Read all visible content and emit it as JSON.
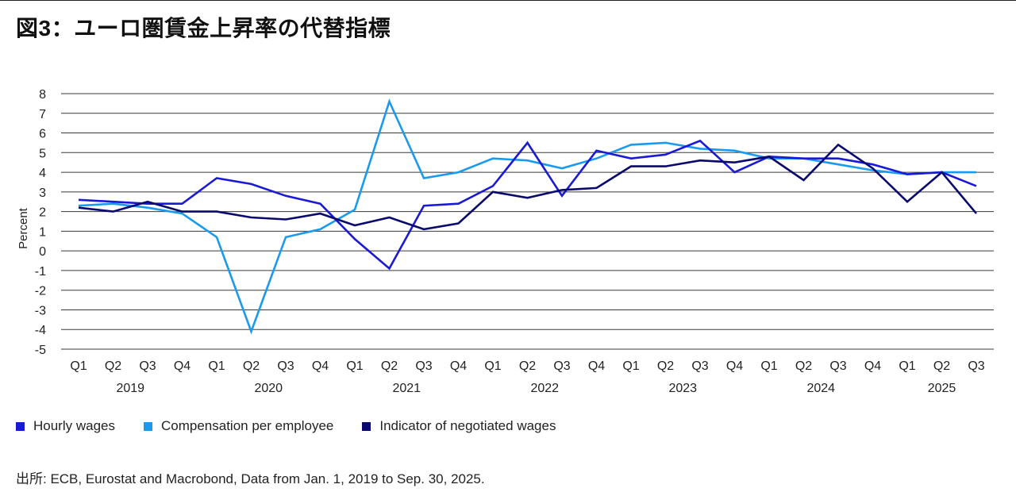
{
  "title": "図3：ユーロ圏賃金上昇率の代替指標",
  "source": "出所: ECB, Eurostat and Macrobond, Data from Jan. 1, 2019 to Sep. 30, 2025.",
  "chart_data": {
    "type": "line",
    "title": "図3：ユーロ圏賃金上昇率の代替指標",
    "ylabel": "Percent",
    "xlabel": "",
    "ylim": [
      -5,
      8
    ],
    "yticks": [
      "8",
      "7",
      "6",
      "5",
      "4",
      "3",
      "2",
      "1",
      "0",
      "-1",
      "-2",
      "-3",
      "-4",
      "-5"
    ],
    "categories": [
      "Q1",
      "Q2",
      "Q3",
      "Q4",
      "Q1",
      "Q2",
      "Q3",
      "Q4",
      "Q1",
      "Q2",
      "Q3",
      "Q4",
      "Q1",
      "Q2",
      "Q3",
      "Q4",
      "Q1",
      "Q2",
      "Q3",
      "Q4",
      "Q1",
      "Q2",
      "Q3",
      "Q4",
      "Q1",
      "Q2",
      "Q3"
    ],
    "years": [
      {
        "label": "2019",
        "start": 0,
        "end": 3
      },
      {
        "label": "2020",
        "start": 4,
        "end": 7
      },
      {
        "label": "2021",
        "start": 8,
        "end": 11
      },
      {
        "label": "2022",
        "start": 12,
        "end": 15
      },
      {
        "label": "2023",
        "start": 16,
        "end": 19
      },
      {
        "label": "2024",
        "start": 20,
        "end": 23
      },
      {
        "label": "2025",
        "start": 24,
        "end": 26
      }
    ],
    "series": [
      {
        "name": "Hourly wages",
        "color": "#1a1ad6",
        "values": [
          2.6,
          2.5,
          2.4,
          2.4,
          3.7,
          3.4,
          2.8,
          2.4,
          0.6,
          -0.9,
          2.3,
          2.4,
          3.3,
          5.5,
          2.8,
          5.1,
          4.7,
          4.9,
          5.6,
          4.0,
          4.8,
          4.7,
          4.7,
          4.4,
          3.9,
          4.0,
          3.3
        ]
      },
      {
        "name": "Compensation per employee",
        "color": "#1a9aef",
        "values": [
          2.3,
          2.4,
          2.2,
          1.9,
          0.7,
          -4.1,
          0.7,
          1.1,
          2.1,
          7.6,
          3.7,
          4.0,
          4.7,
          4.6,
          4.2,
          4.7,
          5.4,
          5.5,
          5.2,
          5.1,
          4.7,
          4.7,
          4.4,
          4.1,
          3.9,
          4.0,
          4.0
        ]
      },
      {
        "name": "Indicator of negotiated wages",
        "color": "#0a0a6e",
        "values": [
          2.2,
          2.0,
          2.5,
          2.0,
          2.0,
          1.7,
          1.6,
          1.9,
          1.3,
          1.7,
          1.1,
          1.4,
          3.0,
          2.7,
          3.1,
          3.2,
          4.3,
          4.3,
          4.6,
          4.5,
          4.8,
          3.6,
          5.4,
          4.2,
          2.5,
          4.0,
          1.9
        ]
      }
    ]
  }
}
